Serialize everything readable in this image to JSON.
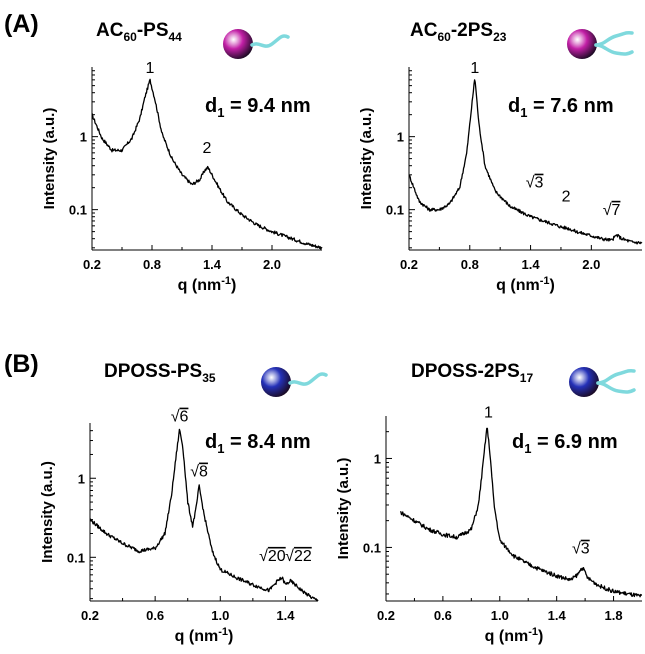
{
  "panel_labels": [
    "(A)",
    "(B)"
  ],
  "colors": {
    "c60_sphere": "#c21fa6",
    "poss_sphere": "#2431b8",
    "chain": "#7fd9dd",
    "curve": "#000000"
  },
  "chart_data": [
    {
      "type": "line",
      "panel": "(A)",
      "molecule": {
        "prefix": "AC",
        "prefix_sub": "60",
        "middle": "-PS",
        "suffix_sub": "44",
        "sphere": "magenta",
        "tails": 1
      },
      "annotation": {
        "main": "d",
        "sub": "1",
        "rest": " = 9.4 nm"
      },
      "xlabel": "q (nm",
      "xlabel_sup": "-1",
      "xlabel_end": ")",
      "ylabel": "Intensity (a.u.)",
      "xscale": "linear",
      "yscale": "log",
      "xlim": [
        0.2,
        2.5
      ],
      "ylim": [
        0.028,
        9
      ],
      "xticks": [
        0.2,
        0.8,
        1.4,
        2.0
      ],
      "xtick_labels": [
        "0.2",
        "0.8",
        "1.4",
        "2.0"
      ],
      "yticks": [
        0.1,
        1
      ],
      "ytick_labels": [
        "0.1",
        "1"
      ],
      "peak_labels": [
        {
          "x": 0.78,
          "y": 7.5,
          "label": "1"
        },
        {
          "x": 1.35,
          "y": 0.6,
          "label": "2"
        }
      ],
      "series": [
        {
          "x": [
            0.2,
            0.3,
            0.4,
            0.5,
            0.6,
            0.68,
            0.73,
            0.78,
            0.83,
            0.9,
            1.0,
            1.1,
            1.2,
            1.28,
            1.33,
            1.36,
            1.4,
            1.47,
            1.55,
            1.7,
            1.85,
            2.0,
            2.2,
            2.35,
            2.5
          ],
          "y": [
            2.0,
            0.95,
            0.65,
            0.65,
            0.95,
            1.8,
            3.5,
            6.0,
            3.2,
            1.1,
            0.5,
            0.3,
            0.22,
            0.26,
            0.35,
            0.38,
            0.3,
            0.2,
            0.13,
            0.085,
            0.062,
            0.05,
            0.04,
            0.034,
            0.03
          ]
        }
      ]
    },
    {
      "type": "line",
      "panel": "(A)",
      "molecule": {
        "prefix": "AC",
        "prefix_sub": "60",
        "middle": "-2PS",
        "suffix_sub": "23",
        "sphere": "magenta",
        "tails": 2
      },
      "annotation": {
        "main": "d",
        "sub": "1",
        "rest": " = 7.6 nm"
      },
      "xlabel": "q (nm",
      "xlabel_sup": "-1",
      "xlabel_end": ")",
      "ylabel": "Intensity (a.u.)",
      "xscale": "linear",
      "yscale": "log",
      "xlim": [
        0.2,
        2.5
      ],
      "ylim": [
        0.028,
        9
      ],
      "xticks": [
        0.2,
        0.8,
        1.4,
        2.0
      ],
      "xtick_labels": [
        "0.2",
        "0.8",
        "1.4",
        "2.0"
      ],
      "yticks": [
        0.1,
        1
      ],
      "ytick_labels": [
        "0.1",
        "1"
      ],
      "peak_labels": [
        {
          "x": 0.85,
          "y": 7.5,
          "label": "1"
        },
        {
          "x": 1.44,
          "y": 0.2,
          "label": "√3",
          "sqrt": true,
          "radicand": "3"
        },
        {
          "x": 1.75,
          "y": 0.13,
          "label": "2"
        },
        {
          "x": 2.2,
          "y": 0.085,
          "label": "√7",
          "sqrt": true,
          "radicand": "7"
        }
      ],
      "series": [
        {
          "x": [
            0.2,
            0.3,
            0.4,
            0.5,
            0.6,
            0.7,
            0.77,
            0.81,
            0.85,
            0.89,
            0.95,
            1.05,
            1.2,
            1.4,
            1.5,
            1.6,
            1.7,
            1.78,
            1.85,
            2.0,
            2.1,
            2.2,
            2.25,
            2.3,
            2.4,
            2.5
          ],
          "y": [
            0.3,
            0.13,
            0.1,
            0.1,
            0.12,
            0.2,
            0.6,
            2.0,
            6.5,
            1.5,
            0.4,
            0.18,
            0.11,
            0.08,
            0.072,
            0.065,
            0.058,
            0.055,
            0.05,
            0.044,
            0.04,
            0.038,
            0.045,
            0.04,
            0.036,
            0.035
          ]
        }
      ]
    },
    {
      "type": "line",
      "panel": "(B)",
      "molecule": {
        "prefix": "DPOSS",
        "prefix_sub": "",
        "middle": "-PS",
        "suffix_sub": "35",
        "sphere": "blue",
        "tails": 1
      },
      "annotation": {
        "main": "d",
        "sub": "1",
        "rest": " = 8.4 nm"
      },
      "xlabel": "q (nm",
      "xlabel_sup": "-1",
      "xlabel_end": ")",
      "ylabel": "Intensity (a.u.)",
      "xscale": "linear",
      "yscale": "log",
      "xlim": [
        0.2,
        1.6
      ],
      "ylim": [
        0.028,
        5
      ],
      "xticks": [
        0.2,
        0.6,
        1.0,
        1.4
      ],
      "xtick_labels": [
        "0.2",
        "0.6",
        "1.0",
        "1.4"
      ],
      "yticks": [
        0.1,
        1
      ],
      "ytick_labels": [
        "0.1",
        "1"
      ],
      "peak_labels": [
        {
          "x": 0.75,
          "y": 5.2,
          "label": "√6",
          "sqrt": true,
          "radicand": "6"
        },
        {
          "x": 0.87,
          "y": 1.05,
          "label": "√8",
          "sqrt": true,
          "radicand": "8"
        },
        {
          "x": 1.32,
          "y": 0.09,
          "label": "√20",
          "sqrt": true,
          "radicand": "20"
        },
        {
          "x": 1.48,
          "y": 0.09,
          "label": "√22",
          "sqrt": true,
          "radicand": "22"
        }
      ],
      "series": [
        {
          "x": [
            0.2,
            0.3,
            0.4,
            0.5,
            0.6,
            0.66,
            0.7,
            0.73,
            0.75,
            0.77,
            0.8,
            0.83,
            0.85,
            0.87,
            0.9,
            0.95,
            1.0,
            1.1,
            1.2,
            1.3,
            1.35,
            1.38,
            1.4,
            1.43,
            1.46,
            1.5,
            1.55,
            1.6
          ],
          "y": [
            0.3,
            0.2,
            0.15,
            0.12,
            0.13,
            0.2,
            0.6,
            2.0,
            4.2,
            2.5,
            0.5,
            0.25,
            0.4,
            0.8,
            0.35,
            0.12,
            0.07,
            0.055,
            0.045,
            0.038,
            0.05,
            0.055,
            0.045,
            0.05,
            0.045,
            0.038,
            0.032,
            0.028
          ]
        }
      ]
    },
    {
      "type": "line",
      "panel": "(B)",
      "molecule": {
        "prefix": "DPOSS",
        "prefix_sub": "",
        "middle": "-2PS",
        "suffix_sub": "17",
        "sphere": "blue",
        "tails": 2
      },
      "annotation": {
        "main": "d",
        "sub": "1",
        "rest": " = 6.9 nm"
      },
      "xlabel": "q (nm",
      "xlabel_sup": "-1",
      "xlabel_end": ")",
      "ylabel": "Intensity (a.u.)",
      "xscale": "linear",
      "yscale": "log",
      "xlim": [
        0.2,
        2.0
      ],
      "ylim": [
        0.025,
        3
      ],
      "xticks": [
        0.2,
        0.6,
        1.0,
        1.4,
        1.8
      ],
      "xtick_labels": [
        "0.2",
        "0.6",
        "1.0",
        "1.4",
        "1.8"
      ],
      "yticks": [
        0.1,
        1
      ],
      "ytick_labels": [
        "0.1",
        "1"
      ],
      "peak_labels": [
        {
          "x": 0.92,
          "y": 2.9,
          "label": "1"
        },
        {
          "x": 1.57,
          "y": 0.085,
          "label": "√3",
          "sqrt": true,
          "radicand": "3"
        }
      ],
      "series": [
        {
          "x": [
            0.3,
            0.4,
            0.5,
            0.6,
            0.7,
            0.8,
            0.85,
            0.88,
            0.91,
            0.93,
            0.96,
            1.0,
            1.1,
            1.2,
            1.3,
            1.4,
            1.5,
            1.55,
            1.58,
            1.62,
            1.7,
            1.8,
            1.9,
            2.0
          ],
          "y": [
            0.25,
            0.2,
            0.16,
            0.14,
            0.13,
            0.16,
            0.3,
            0.8,
            2.3,
            1.2,
            0.3,
            0.12,
            0.08,
            0.065,
            0.055,
            0.048,
            0.043,
            0.05,
            0.06,
            0.045,
            0.037,
            0.032,
            0.03,
            0.028
          ]
        }
      ]
    }
  ]
}
